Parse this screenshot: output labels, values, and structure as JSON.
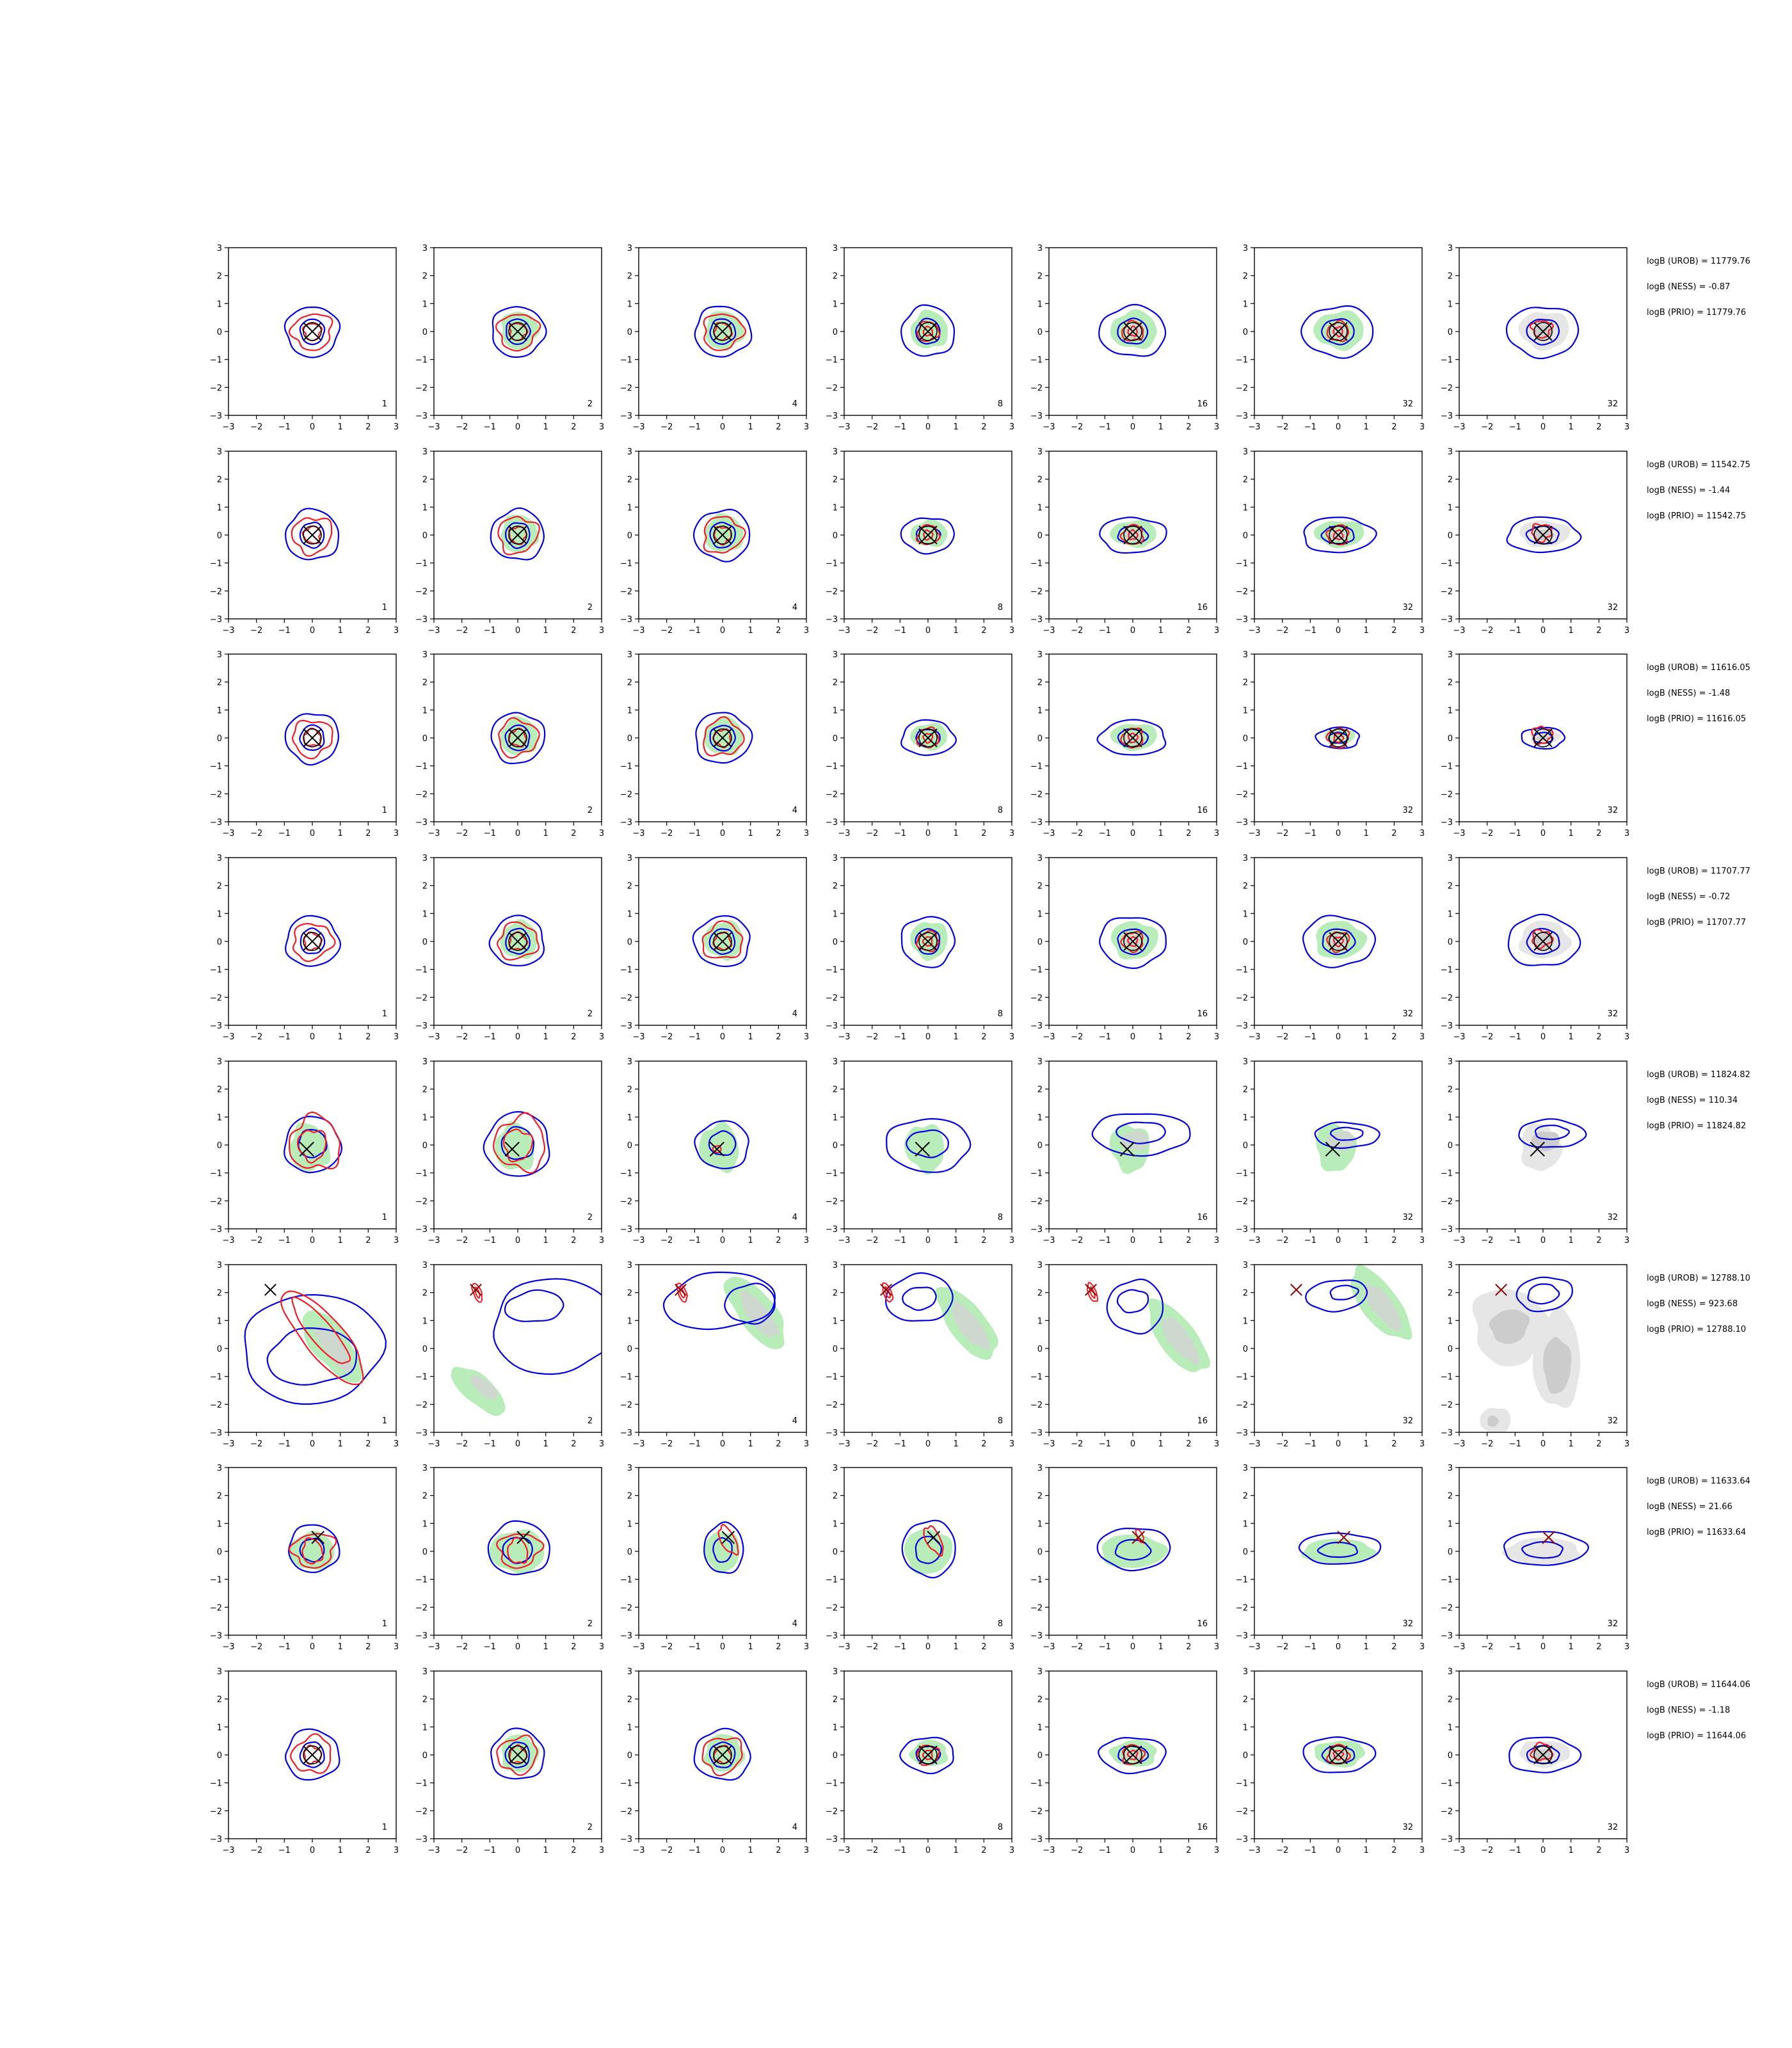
{
  "colors": {
    "blue": "#0000dd",
    "red": "#ee1c24",
    "green_fill": "#b8ecb8",
    "green_core": "#cfd8cf",
    "grey_fill": "#e6e6e6",
    "grey_core": "#cccccc",
    "marker": "#000000",
    "marker_red": "#8b0000"
  },
  "chart_data": {
    "type": "contour-grid",
    "rows": 8,
    "cols": 7,
    "xlim": [
      -3,
      3
    ],
    "ylim": [
      -3,
      3
    ],
    "ticks": [
      "−3",
      "−2",
      "−1",
      "0",
      "1",
      "2",
      "3"
    ],
    "tick_values": [
      -3,
      -2,
      -1,
      0,
      1,
      2,
      3
    ],
    "column_labels": [
      "1",
      "2",
      "4",
      "8",
      "16",
      "32",
      "32"
    ],
    "row_stats": [
      [
        "logB (UROB) = 11779.76",
        "logB (NESS) = -0.87",
        "logB (PRIO) = 11779.76"
      ],
      [
        "logB (UROB) = 11542.75",
        "logB (NESS) = -1.44",
        "logB (PRIO) = 11542.75"
      ],
      [
        "logB (UROB) = 11616.05",
        "logB (NESS) = -1.48",
        "logB (PRIO) = 11616.05"
      ],
      [
        "logB (UROB) = 11707.77",
        "logB (NESS) = -0.72",
        "logB (PRIO) = 11707.77"
      ],
      [
        "logB (UROB) = 11824.82",
        "logB (NESS) = 110.34",
        "logB (PRIO) = 11824.82"
      ],
      [
        "logB (UROB) = 12788.10",
        "logB (NESS) = 923.68",
        "logB (PRIO) = 12788.10"
      ],
      [
        "logB (UROB) = 11633.64",
        "logB (NESS) = 21.66",
        "logB (PRIO) = 11633.64"
      ],
      [
        "logB (UROB) = 11644.06",
        "logB (NESS) = -1.18",
        "logB (PRIO) = 11644.06"
      ]
    ],
    "true_point": [
      [
        0.0,
        0.0
      ],
      [
        0.0,
        0.0
      ],
      [
        0.0,
        0.0
      ],
      [
        0.0,
        0.0
      ],
      [
        -0.2,
        -0.15
      ],
      [
        -1.5,
        2.1
      ],
      [
        0.2,
        0.5
      ],
      [
        0.0,
        0.0
      ]
    ]
  }
}
